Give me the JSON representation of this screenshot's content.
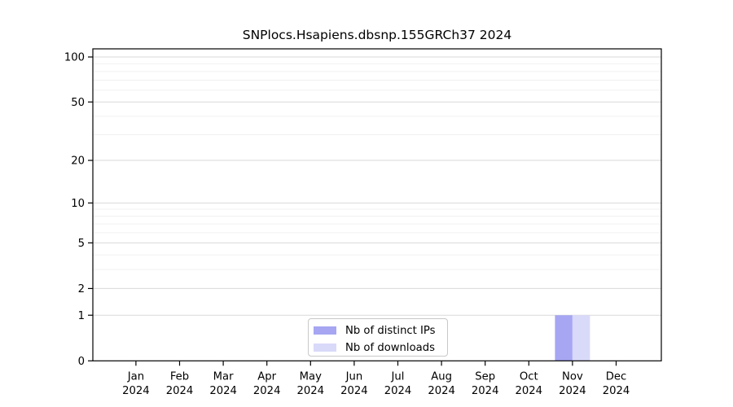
{
  "chart_data": {
    "type": "bar",
    "title": "SNPlocs.Hsapiens.dbsnp.155GRCh37 2024",
    "year_label": "2024",
    "categories": [
      "Jan",
      "Feb",
      "Mar",
      "Apr",
      "May",
      "Jun",
      "Jul",
      "Aug",
      "Sep",
      "Oct",
      "Nov",
      "Dec"
    ],
    "series": [
      {
        "name": "Nb of distinct IPs",
        "color": "#a6a6f2",
        "values": [
          0,
          0,
          0,
          0,
          0,
          0,
          0,
          0,
          0,
          0,
          1,
          0
        ]
      },
      {
        "name": "Nb of downloads",
        "color": "#d9d9f9",
        "values": [
          0,
          0,
          0,
          0,
          0,
          0,
          0,
          0,
          0,
          0,
          1,
          0
        ]
      }
    ],
    "y_ticks": [
      0,
      1,
      2,
      5,
      10,
      20,
      50,
      100
    ],
    "y_minor_gridlines": [
      3,
      4,
      6,
      7,
      8,
      9,
      30,
      40,
      60,
      70,
      80,
      90
    ],
    "y_scale": "log1p",
    "ylim": [
      0,
      113
    ],
    "grid": "horizontal",
    "legend_position": "bottom-center",
    "colors": {
      "grid_major": "#d9d9d9",
      "grid_minor": "#f0f0f0",
      "axis": "#000000",
      "background": "#ffffff"
    }
  }
}
